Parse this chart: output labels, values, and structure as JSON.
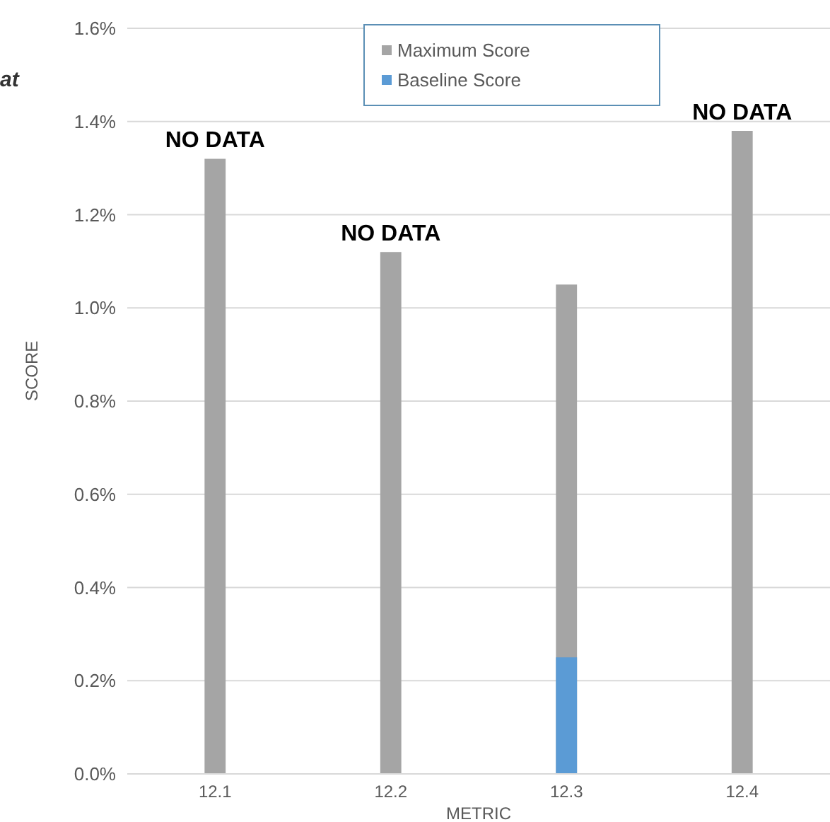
{
  "chart_data": {
    "type": "bar",
    "title": "at",
    "xlabel": "METRIC",
    "ylabel": "SCORE",
    "categories": [
      "12.1",
      "12.2",
      "12.3",
      "12.4"
    ],
    "series": [
      {
        "name": "Maximum Score",
        "color": "#a5a5a5",
        "values": [
          1.32,
          1.12,
          1.05,
          1.38
        ],
        "value_labels": [
          "NO DATA",
          "NO DATA",
          null,
          "NO DATA"
        ]
      },
      {
        "name": "Baseline Score",
        "color": "#5b9bd5",
        "values": [
          null,
          null,
          0.25,
          null
        ]
      }
    ],
    "ylim": [
      0,
      1.6
    ],
    "yticks": [
      {
        "value": 0,
        "label": "0.0%"
      },
      {
        "value": 0.2,
        "label": "0.2%"
      },
      {
        "value": 0.4,
        "label": "0.4%"
      },
      {
        "value": 0.6,
        "label": "0.6%"
      },
      {
        "value": 0.8,
        "label": "0.8%"
      },
      {
        "value": 1.0,
        "label": "1.0%"
      },
      {
        "value": 1.2,
        "label": "1.2%"
      },
      {
        "value": 1.4,
        "label": "1.4%"
      },
      {
        "value": 1.6,
        "label": "1.6%"
      }
    ],
    "grid": "y",
    "legend": "top"
  }
}
